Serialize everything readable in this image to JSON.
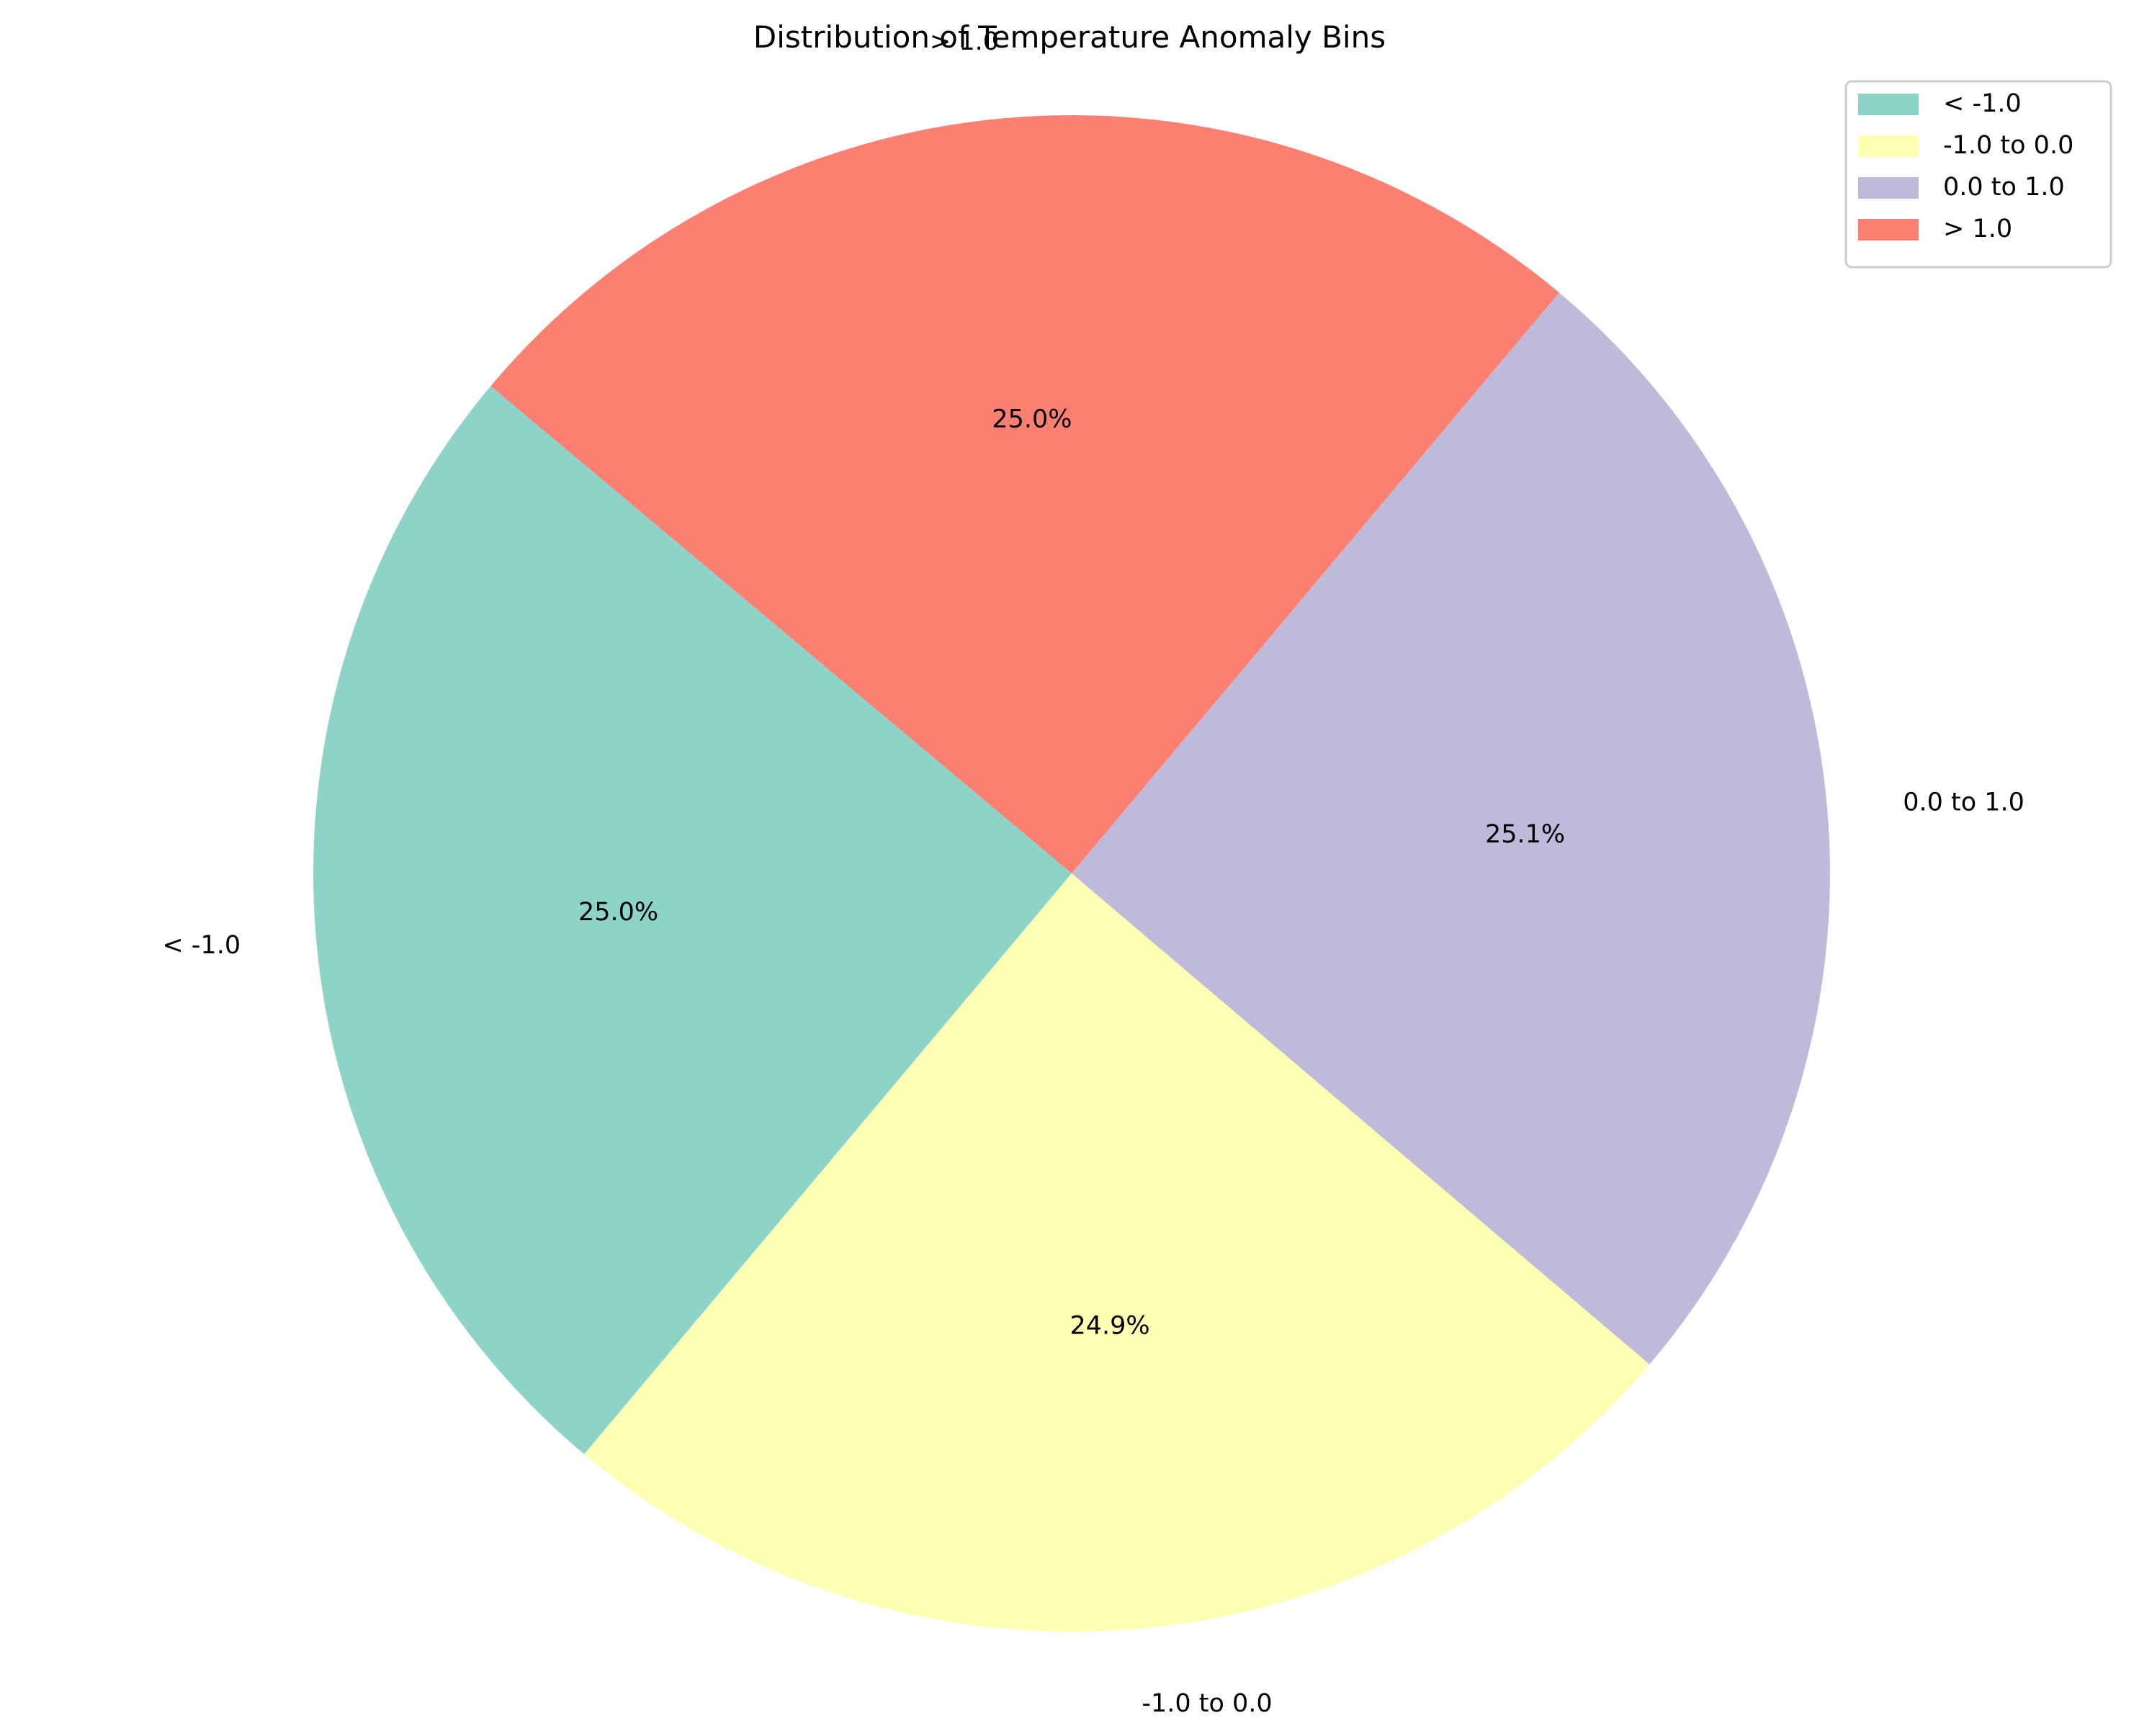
{
  "chart_data": {
    "type": "pie",
    "title": "Distribution of Temperature Anomaly Bins",
    "categories": [
      "< -1.0",
      "-1.0 to 0.0",
      "0.0 to 1.0",
      "> 1.0"
    ],
    "values": [
      25.0,
      24.9,
      25.1,
      25.0
    ],
    "value_labels": [
      "25.0%",
      "24.9%",
      "25.1%",
      "25.0%"
    ],
    "colors": [
      "#8dd3c7",
      "#ffffb3",
      "#bebada",
      "#fb8072"
    ],
    "start_angle_deg": 140,
    "direction": "counterclockwise",
    "legend": {
      "position": "top-right",
      "entries": [
        "< -1.0",
        "-1.0 to 0.0",
        "0.0 to 1.0",
        "> 1.0"
      ]
    }
  }
}
